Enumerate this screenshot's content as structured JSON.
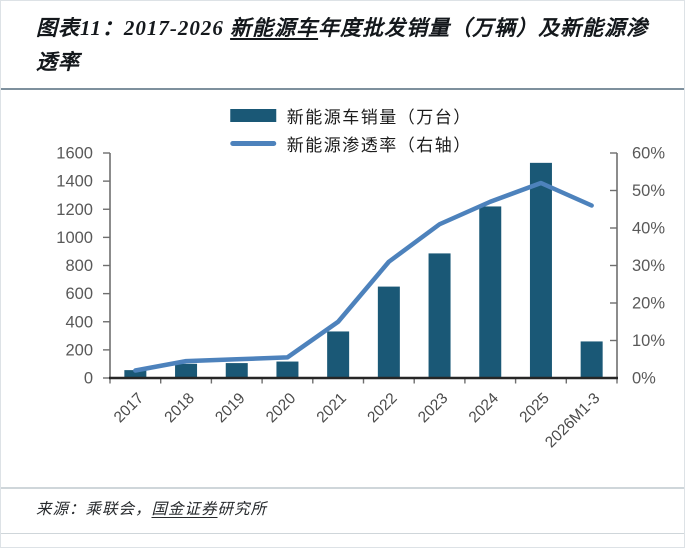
{
  "figure": {
    "title": {
      "prefix": "图表11：2017-2026 ",
      "underlined": "新能源车",
      "suffix": "年度批发销量（万辆）及新能源渗透率"
    },
    "source": {
      "prefix": "来源：乘联会，",
      "underlined": "国金证券",
      "suffix": "研究所"
    }
  },
  "colors": {
    "bar": "#1a5876",
    "line": "#4d82bc",
    "axis": "#6f6f6f",
    "baseline": "#262626",
    "tick_label": "#595959",
    "x_label": "#4a4a4a"
  },
  "chart_data": {
    "type": "bar+line combo",
    "title": "图表11：2017-2026 新能源车年度批发销量（万辆）及新能源渗透率",
    "categories": [
      "2017",
      "2018",
      "2019",
      "2020",
      "2021",
      "2022",
      "2023",
      "2024",
      "2025",
      "2026M1-3"
    ],
    "series": [
      {
        "name": "新能源车销量（万台）",
        "type": "bar",
        "axis": "left",
        "values": [
          56,
          101,
          106,
          117,
          331,
          650,
          886,
          1220,
          1530,
          260
        ]
      },
      {
        "name": "新能源渗透率（右轴）",
        "type": "line",
        "axis": "right",
        "values": [
          2,
          4.5,
          5,
          5.5,
          15,
          31,
          41,
          47,
          52,
          46
        ]
      }
    ],
    "left_axis": {
      "min": 0,
      "max": 1600,
      "step": 200,
      "ticks": [
        0,
        200,
        400,
        600,
        800,
        1000,
        1200,
        1400,
        1600
      ]
    },
    "right_axis": {
      "min": 0,
      "max": 60,
      "step": 10,
      "tick_labels": [
        "0%",
        "10%",
        "20%",
        "30%",
        "40%",
        "50%",
        "60%"
      ]
    },
    "grid": false,
    "legend_position": "top-center"
  }
}
